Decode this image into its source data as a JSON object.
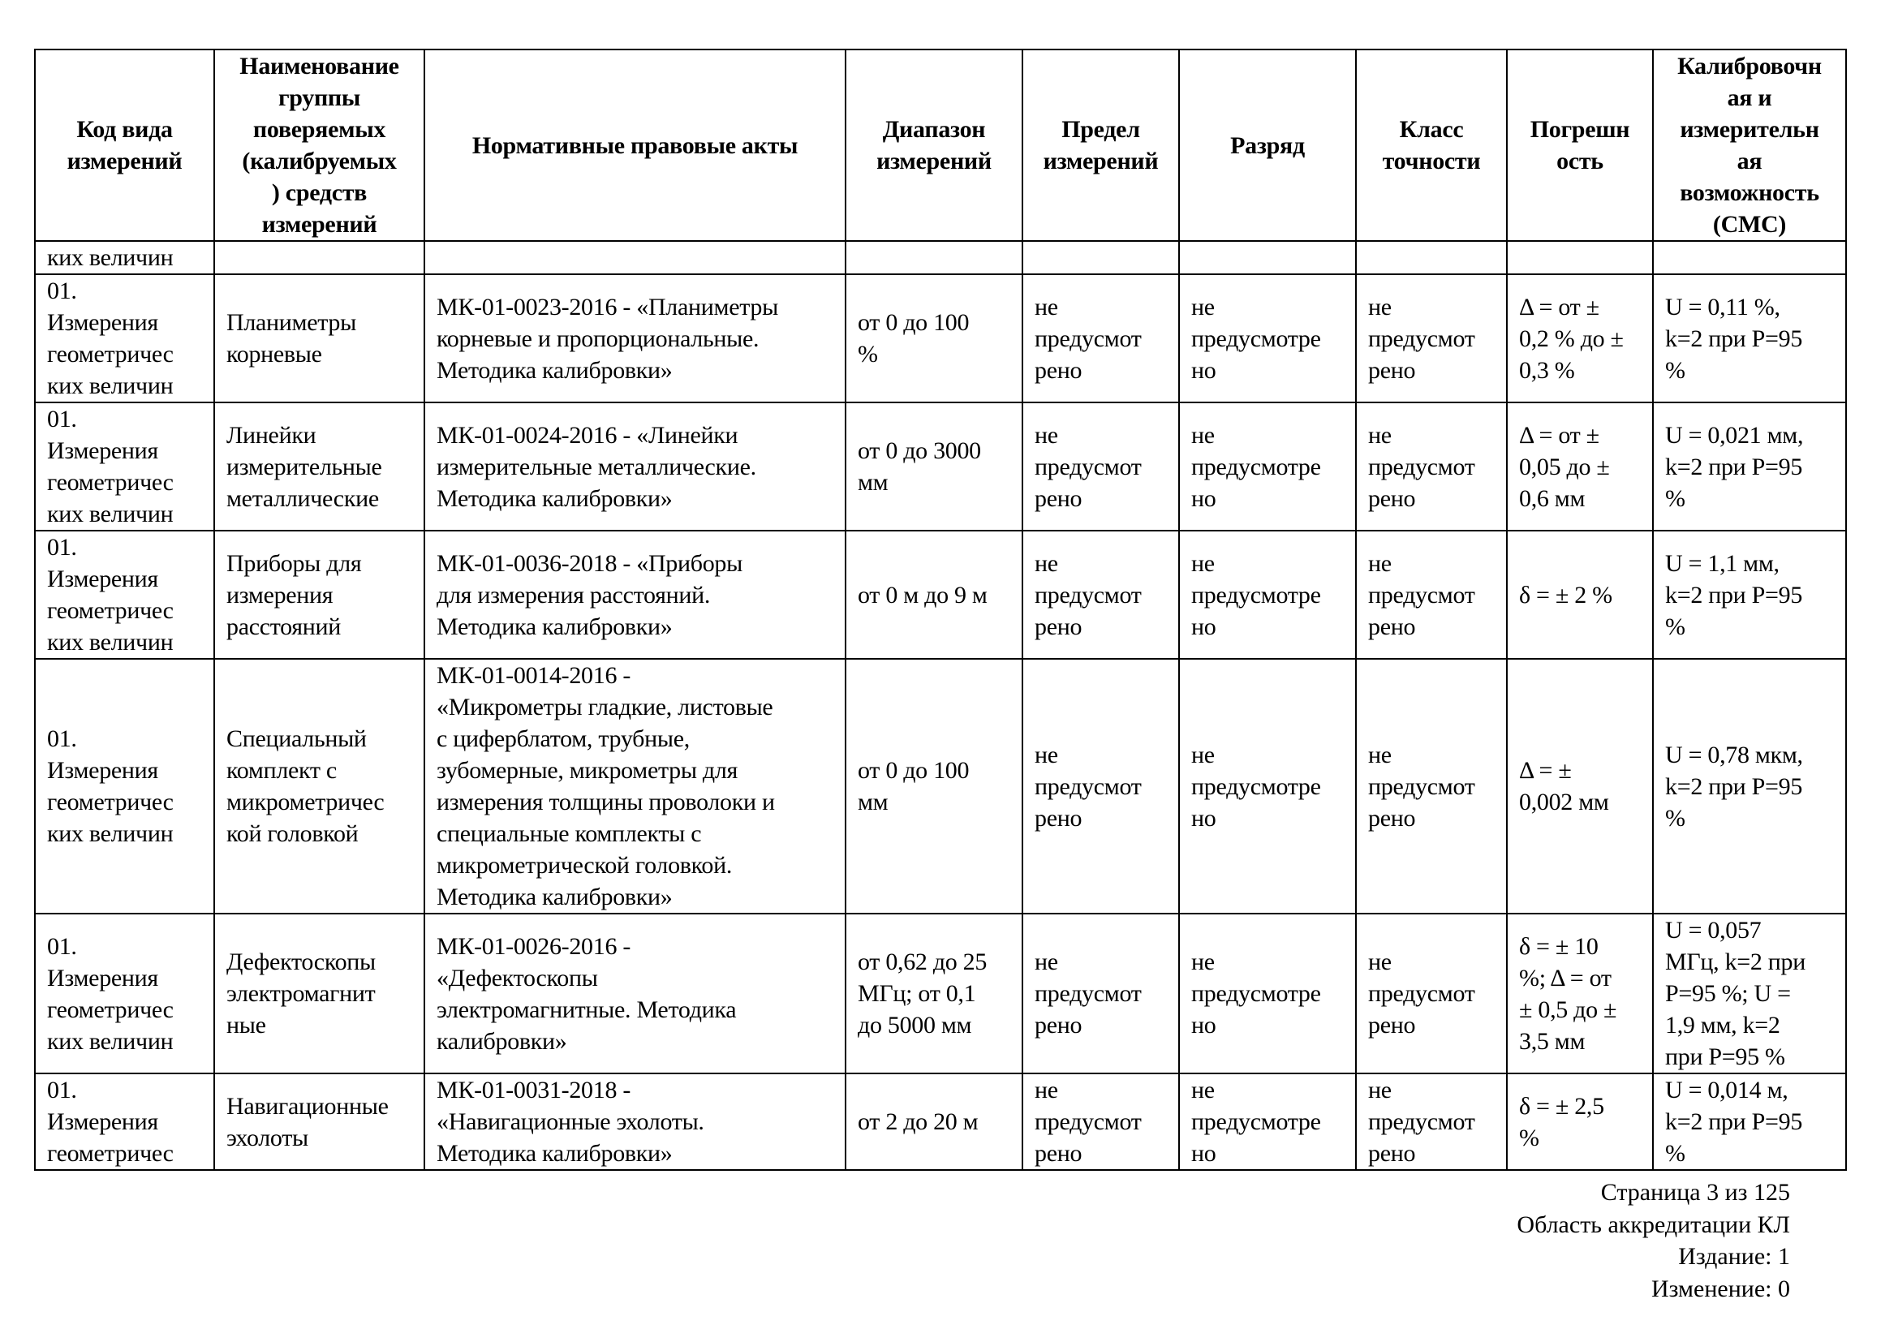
{
  "table": {
    "headers": [
      "Код вида\nизмерений",
      "Наименование\nгруппы\nповеряемых\n(калибруемых\n) средств\nизмерений",
      "Нормативные правовые акты",
      "Диапазон\nизмерений",
      "Предел\nизмерений",
      "Разряд",
      "Класс\nточности",
      "Погрешн\nость",
      "Калибровочн\nая и\nизмерительн\nая\nвозможность\n(СМС)"
    ],
    "continuation": [
      "ких величин",
      "",
      "",
      "",
      "",
      "",
      "",
      "",
      ""
    ],
    "rows": [
      [
        "01.\nИзмерения\nгеометричес\nких величин",
        "Планиметры\nкорневые",
        "МК-01-0023-2016 - «Планиметры\nкорневые и пропорциональные.\nМетодика калибровки»",
        "от 0 до 100\n%",
        "не\nпредусмот\nрено",
        "не\nпредусмотре\nно",
        "не\nпредусмот\nрено",
        "Δ = от ±\n0,2 % до ±\n0,3 %",
        "U = 0,11 %,\nk=2 при P=95\n%"
      ],
      [
        "01.\nИзмерения\nгеометричес\nких величин",
        "Линейки\nизмерительные\nметаллические",
        "МК-01-0024-2016 - «Линейки\nизмерительные металлические.\nМетодика калибровки»",
        "от 0 до 3000\nмм",
        "не\nпредусмот\nрено",
        "не\nпредусмотре\nно",
        "не\nпредусмот\nрено",
        "Δ = от ±\n0,05 до ±\n0,6 мм",
        "U = 0,021 мм,\nk=2 при P=95\n%"
      ],
      [
        "01.\nИзмерения\nгеометричес\nких величин",
        "Приборы для\nизмерения\nрасстояний",
        "МК-01-0036-2018 - «Приборы\nдля измерения расстояний.\nМетодика калибровки»",
        "от 0 м до 9 м",
        "не\nпредусмот\nрено",
        "не\nпредусмотре\nно",
        "не\nпредусмот\nрено",
        "δ = ± 2 %",
        "U = 1,1 мм,\nk=2 при P=95\n%"
      ],
      [
        "01.\nИзмерения\nгеометричес\nких величин",
        "Специальный\nкомплект с\nмикрометричес\nкой головкой",
        "МК-01-0014-2016 -\n«Микрометры гладкие, листовые\nс циферблатом, трубные,\nзубомерные, микрометры для\nизмерения толщины проволоки и\nспециальные комплекты с\nмикрометрической головкой.\nМетодика калибровки»",
        "от 0 до 100\nмм",
        "не\nпредусмот\nрено",
        "не\nпредусмотре\nно",
        "не\nпредусмот\nрено",
        "Δ = ±\n0,002 мм",
        "U = 0,78 мкм,\nk=2 при P=95\n%"
      ],
      [
        "01.\nИзмерения\nгеометричес\nких величин",
        "Дефектоскопы\nэлектромагнит\nные",
        "МК-01-0026-2016 -\n«Дефектоскопы\nэлектромагнитные. Методика\nкалибровки»",
        "от 0,62 до 25\nМГц; от 0,1\nдо 5000 мм",
        "не\nпредусмот\nрено",
        "не\nпредусмотре\nно",
        "не\nпредусмот\nрено",
        "δ = ± 10\n%; Δ = от\n± 0,5 до ±\n3,5 мм",
        "U = 0,057\nМГц, k=2 при\nP=95 %; U =\n1,9 мм, k=2\nпри P=95 %"
      ],
      [
        "01.\nИзмерения\nгеометричес",
        "Навигационные\nэхолоты",
        "МК-01-0031-2018 -\n«Навигационные эхолоты.\nМетодика калибровки»",
        "от 2 до 20 м",
        "не\nпредусмот\nрено",
        "не\nпредусмотре\nно",
        "не\nпредусмот\nрено",
        "δ = ± 2,5\n%",
        "U = 0,014 м,\nk=2 при P=95\n%"
      ]
    ]
  },
  "footer": {
    "page": "Страница 3 из 125",
    "scope": "Область аккредитации КЛ",
    "edition": "Издание: 1",
    "change": "Изменение: 0"
  }
}
